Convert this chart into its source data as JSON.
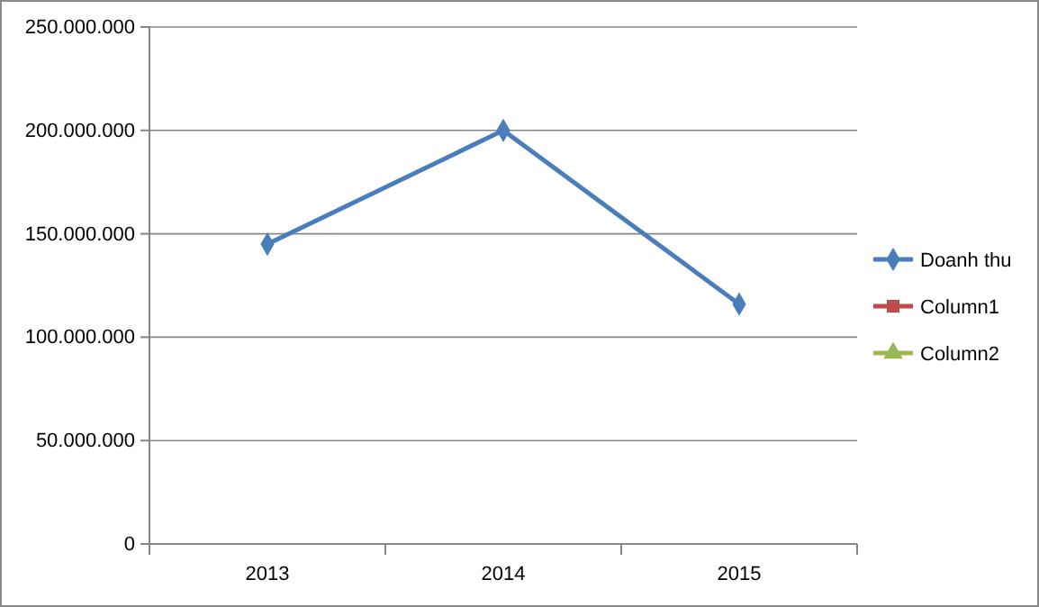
{
  "chart_data": {
    "type": "line",
    "categories": [
      "2013",
      "2014",
      "2015"
    ],
    "series": [
      {
        "name": "Doanh thu",
        "color": "#4a7ebb",
        "marker": "diamond",
        "values": [
          145000000,
          200000000,
          116000000
        ]
      },
      {
        "name": "Column1",
        "color": "#be4b48",
        "marker": "square",
        "values": [
          null,
          null,
          null
        ]
      },
      {
        "name": "Column2",
        "color": "#98b954",
        "marker": "triangle",
        "values": [
          null,
          null,
          null
        ]
      }
    ],
    "ylim": [
      0,
      250000000
    ],
    "yticks": [
      0,
      {
        "value": 50000000,
        "label": "50.000.000"
      },
      {
        "value": 100000000,
        "label": "100.000.000"
      },
      {
        "value": 150000000,
        "label": "150.000.000"
      },
      {
        "value": 200000000,
        "label": "200.000.000"
      },
      {
        "value": 250000000,
        "label": "250.000.000"
      }
    ],
    "grid": "y",
    "legend": "right",
    "line_style": "solid"
  }
}
